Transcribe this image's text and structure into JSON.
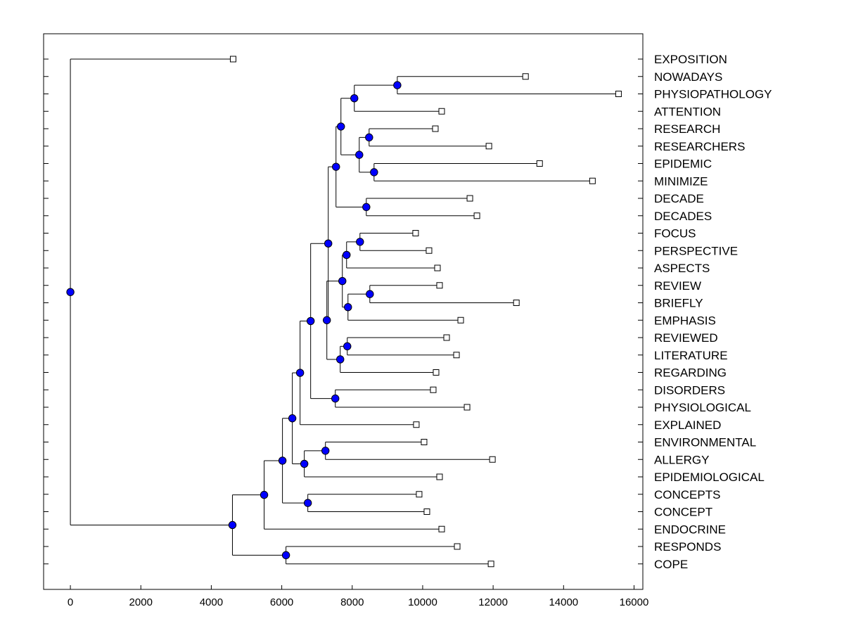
{
  "chart_data": {
    "type": "dendrogram",
    "title": "",
    "xlabel": "",
    "ylabel": "",
    "xlim": [
      -760,
      16250
    ],
    "xticks": [
      0,
      2000,
      4000,
      6000,
      8000,
      10000,
      12000,
      14000,
      16000
    ],
    "xtick_labels": [
      "0",
      "2000",
      "4000",
      "6000",
      "8000",
      "10000",
      "12000",
      "14000",
      "16000"
    ],
    "leaves": [
      {
        "id": "L0",
        "label": "EXPOSITION",
        "value": 4620
      },
      {
        "id": "L1",
        "label": "NOWADAYS",
        "value": 12920
      },
      {
        "id": "L2",
        "label": "PHYSIOPATHOLOGY",
        "value": 15560
      },
      {
        "id": "L3",
        "label": "ATTENTION",
        "value": 10540
      },
      {
        "id": "L4",
        "label": "RESEARCH",
        "value": 10360
      },
      {
        "id": "L5",
        "label": "RESEARCHERS",
        "value": 11880
      },
      {
        "id": "L6",
        "label": "EPIDEMIC",
        "value": 13320
      },
      {
        "id": "L7",
        "label": "MINIMIZE",
        "value": 14820
      },
      {
        "id": "L8",
        "label": "DECADE",
        "value": 11340
      },
      {
        "id": "L9",
        "label": "DECADES",
        "value": 11540
      },
      {
        "id": "L10",
        "label": "FOCUS",
        "value": 9800
      },
      {
        "id": "L11",
        "label": "PERSPECTIVE",
        "value": 10180
      },
      {
        "id": "L12",
        "label": "ASPECTS",
        "value": 10420
      },
      {
        "id": "L13",
        "label": "REVIEW",
        "value": 10480
      },
      {
        "id": "L14",
        "label": "BRIEFLY",
        "value": 12660
      },
      {
        "id": "L15",
        "label": "EMPHASIS",
        "value": 11080
      },
      {
        "id": "L16",
        "label": "REVIEWED",
        "value": 10680
      },
      {
        "id": "L17",
        "label": "LITERATURE",
        "value": 10960
      },
      {
        "id": "L18",
        "label": "REGARDING",
        "value": 10380
      },
      {
        "id": "L19",
        "label": "DISORDERS",
        "value": 10300
      },
      {
        "id": "L20",
        "label": "PHYSIOLOGICAL",
        "value": 11260
      },
      {
        "id": "L21",
        "label": "EXPLAINED",
        "value": 9820
      },
      {
        "id": "L22",
        "label": "ENVIRONMENTAL",
        "value": 10040
      },
      {
        "id": "L23",
        "label": "ALLERGY",
        "value": 11980
      },
      {
        "id": "L24",
        "label": "EPIDEMIOLOGICAL",
        "value": 10480
      },
      {
        "id": "L25",
        "label": "CONCEPTS",
        "value": 9900
      },
      {
        "id": "L26",
        "label": "CONCEPT",
        "value": 10120
      },
      {
        "id": "L27",
        "label": "ENDOCRINE",
        "value": 10540
      },
      {
        "id": "L28",
        "label": "RESPONDS",
        "value": 10980
      },
      {
        "id": "L29",
        "label": "COPE",
        "value": 11940
      }
    ],
    "merges": [
      {
        "id": "N1",
        "value": 9280,
        "children": [
          "L1",
          "L2"
        ]
      },
      {
        "id": "N2",
        "value": 8060,
        "children": [
          "N1",
          "L3"
        ]
      },
      {
        "id": "N3",
        "value": 8480,
        "children": [
          "L4",
          "L5"
        ]
      },
      {
        "id": "N4",
        "value": 8620,
        "children": [
          "L6",
          "L7"
        ]
      },
      {
        "id": "N5",
        "value": 8200,
        "children": [
          "N3",
          "N4"
        ]
      },
      {
        "id": "N6",
        "value": 7680,
        "children": [
          "N2",
          "N5"
        ]
      },
      {
        "id": "N7",
        "value": 8400,
        "children": [
          "L8",
          "L9"
        ]
      },
      {
        "id": "N8",
        "value": 7540,
        "children": [
          "N6",
          "N7"
        ]
      },
      {
        "id": "N9",
        "value": 8220,
        "children": [
          "L10",
          "L11"
        ]
      },
      {
        "id": "N10",
        "value": 7840,
        "children": [
          "N9",
          "L12"
        ]
      },
      {
        "id": "N11",
        "value": 8500,
        "children": [
          "L13",
          "L14"
        ]
      },
      {
        "id": "N12",
        "value": 7880,
        "children": [
          "N11",
          "L15"
        ]
      },
      {
        "id": "N13",
        "value": 7720,
        "children": [
          "N10",
          "N12"
        ]
      },
      {
        "id": "N14",
        "value": 7860,
        "children": [
          "L16",
          "L17"
        ]
      },
      {
        "id": "N15",
        "value": 7660,
        "children": [
          "N14",
          "L18"
        ]
      },
      {
        "id": "N16",
        "value": 7280,
        "children": [
          "N13",
          "N15"
        ]
      },
      {
        "id": "N17",
        "value": 7320,
        "children": [
          "N8",
          "N16"
        ]
      },
      {
        "id": "N18",
        "value": 7520,
        "children": [
          "L19",
          "L20"
        ]
      },
      {
        "id": "N19",
        "value": 6820,
        "children": [
          "N17",
          "N18"
        ]
      },
      {
        "id": "N20",
        "value": 6520,
        "children": [
          "N19",
          "L21"
        ]
      },
      {
        "id": "N21",
        "value": 7240,
        "children": [
          "L22",
          "L23"
        ]
      },
      {
        "id": "N22",
        "value": 6640,
        "children": [
          "N21",
          "L24"
        ]
      },
      {
        "id": "N23",
        "value": 6300,
        "children": [
          "N20",
          "N22"
        ]
      },
      {
        "id": "N24",
        "value": 6740,
        "children": [
          "L25",
          "L26"
        ]
      },
      {
        "id": "N25",
        "value": 6020,
        "children": [
          "N23",
          "N24"
        ]
      },
      {
        "id": "N26",
        "value": 5500,
        "children": [
          "N25",
          "L27"
        ]
      },
      {
        "id": "N27",
        "value": 6120,
        "children": [
          "L28",
          "L29"
        ]
      },
      {
        "id": "N28",
        "value": 4600,
        "children": [
          "N26",
          "N27"
        ]
      },
      {
        "id": "N29",
        "value": 0,
        "children": [
          "L0",
          "N28"
        ]
      }
    ],
    "colors": {
      "node_fill": "#0000ff",
      "leaf_fill": "#ffffff",
      "line": "#000000",
      "frame": "#000000"
    }
  }
}
